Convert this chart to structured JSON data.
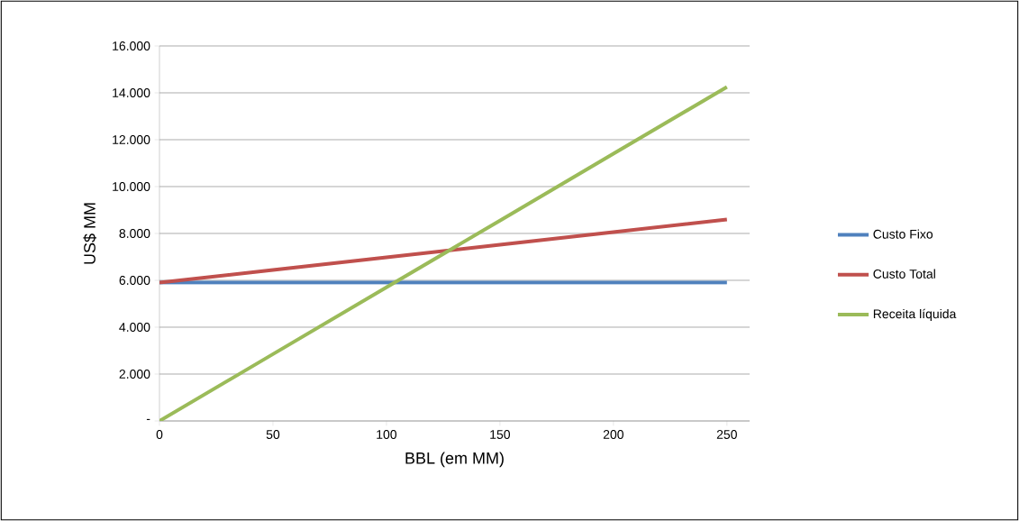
{
  "chart_data": {
    "type": "line",
    "xlabel": "BBL (em MM)",
    "ylabel": "US$ MM",
    "x": [
      0,
      50,
      100,
      150,
      200,
      250
    ],
    "series": [
      {
        "name": "Custo Fixo",
        "color": "#4f81bd",
        "values": [
          5900,
          5900,
          5900,
          5900,
          5900,
          5900
        ]
      },
      {
        "name": "Custo Total",
        "color": "#c0504d",
        "values": [
          5900,
          6440,
          6980,
          7520,
          8060,
          8600
        ]
      },
      {
        "name": "Receita líquida",
        "color": "#9bbb59",
        "values": [
          0,
          2850,
          5700,
          8550,
          11400,
          14250
        ]
      }
    ],
    "xlim": [
      0,
      260
    ],
    "ylim": [
      0,
      16000
    ],
    "xticks": [
      0,
      50,
      100,
      150,
      200,
      250
    ],
    "yticks": [
      {
        "value": 0,
        "label": "-"
      },
      {
        "value": 2000,
        "label": "2.000"
      },
      {
        "value": 4000,
        "label": "4.000"
      },
      {
        "value": 6000,
        "label": "6.000"
      },
      {
        "value": 8000,
        "label": "8.000"
      },
      {
        "value": 10000,
        "label": "10.000"
      },
      {
        "value": 12000,
        "label": "12.000"
      },
      {
        "value": 14000,
        "label": "14.000"
      },
      {
        "value": 16000,
        "label": "16.000"
      }
    ],
    "grid": "y",
    "legend": "right",
    "marker": "none",
    "line_style": "solid"
  }
}
